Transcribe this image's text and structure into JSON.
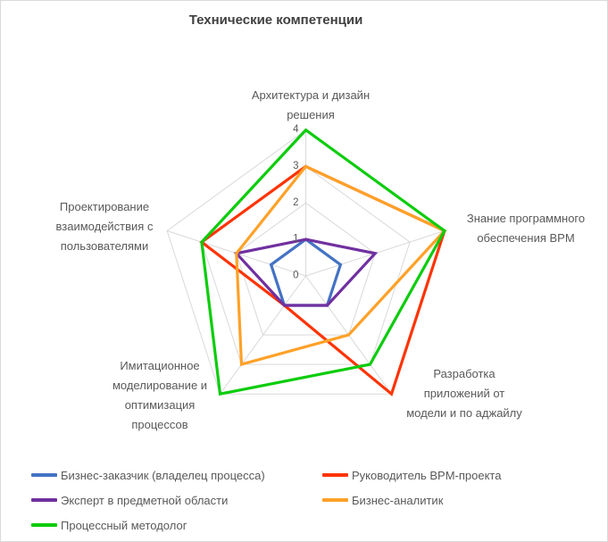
{
  "chart_data": {
    "type": "radar",
    "title": "Технические компетенции",
    "categories": [
      "Архитектура и дизайн решения",
      "Знание программного обеспечения BPM",
      "Разработка приложений от модели и по аджайлу",
      "Имитационное моделирование и оптимизация процессов",
      "Проектирование взаимодействия с пользователями"
    ],
    "category_lines": [
      [
        "Архитектура и дизайн",
        "решения"
      ],
      [
        "Знание программного",
        "обеспечения BPM"
      ],
      [
        "Разработка",
        "приложений от",
        "модели и по аджайлу"
      ],
      [
        "Имитационное",
        "моделирование и",
        "оптимизация",
        "процессов"
      ],
      [
        "Проектирование",
        "взаимодействия с",
        "пользователями"
      ]
    ],
    "series": [
      {
        "name": "Бизнес-заказчик (владелец процесса)",
        "color": "#4472C4",
        "values": [
          1,
          1,
          1,
          1,
          1
        ]
      },
      {
        "name": "Руководитель BPM-проекта",
        "color": "#FF3300",
        "values": [
          3,
          4,
          4,
          1,
          3
        ]
      },
      {
        "name": "Эксперт в предметной области",
        "color": "#7030A0",
        "values": [
          1,
          2,
          1,
          1,
          2
        ]
      },
      {
        "name": "Бизнес-аналитик",
        "color": "#FFA128",
        "values": [
          3,
          4,
          2,
          3,
          2
        ]
      },
      {
        "name": "Процессный методолог",
        "color": "#0BCC0B",
        "values": [
          4,
          4,
          3,
          4,
          3
        ]
      }
    ],
    "ticks": [
      0,
      1,
      2,
      3,
      4
    ],
    "ylim": [
      0,
      4
    ],
    "grid": true,
    "grid_color": "#D9D9D9",
    "tick_label_color": "#595959",
    "axis_label_color": "#595959",
    "title_color": "#404040",
    "legend_position": "bottom"
  }
}
